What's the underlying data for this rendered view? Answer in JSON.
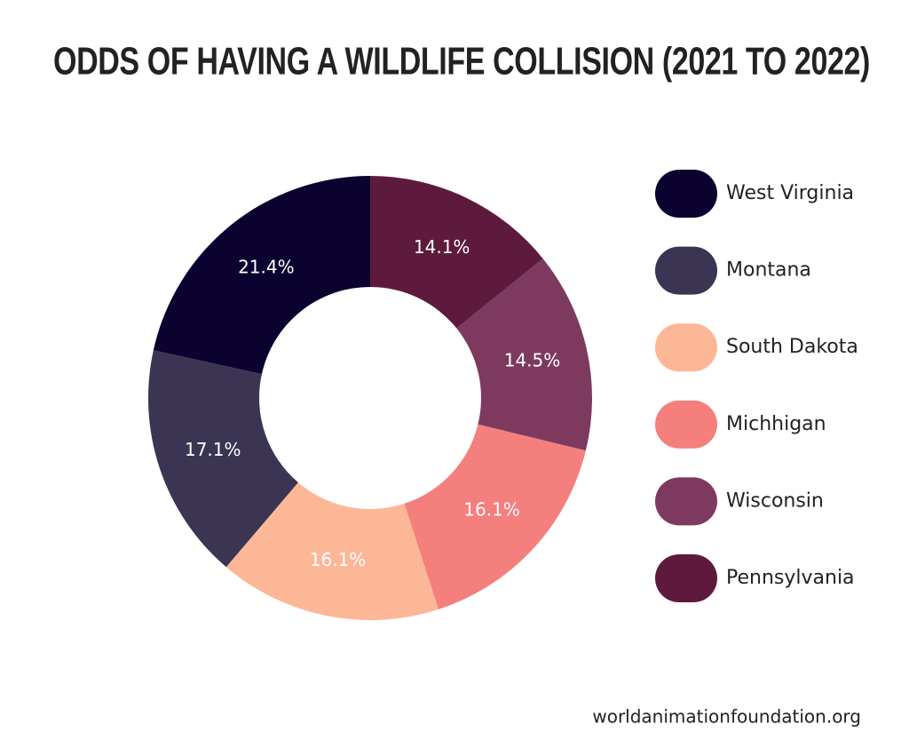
{
  "chart_data": {
    "type": "donut",
    "title": "ODDS OF HAVING A WILDLIFE COLLISION (2021 TO 2022)",
    "categories": [
      "West Virginia",
      "Montana",
      "South Dakota",
      "Michhigan",
      "Wisconsin",
      "Pennsylvania"
    ],
    "values": [
      21.4,
      17.1,
      16.1,
      16.1,
      14.5,
      14.1
    ],
    "value_labels": [
      "21.4%",
      "17.1%",
      "16.1%",
      "16.1%",
      "14.5%",
      "14.1%"
    ],
    "colors": [
      "#0b0230",
      "#3b3553",
      "#fcb797",
      "#f47f7d",
      "#7d3a5e",
      "#5e1a3c"
    ],
    "legend": "right"
  },
  "footer": "worldanimationfoundation.org"
}
